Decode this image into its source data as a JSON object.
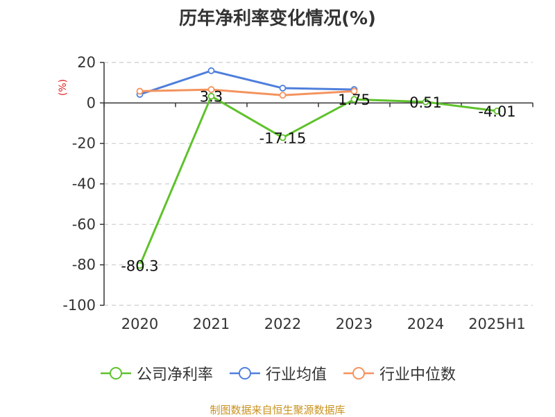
{
  "chart_data": {
    "type": "line",
    "title": "历年净利率变化情况(%)",
    "ylabel": "(%)",
    "categories": [
      "2020",
      "2021",
      "2022",
      "2023",
      "2024",
      "2025H1"
    ],
    "ylim": [
      -100,
      20
    ],
    "yticks": [
      20,
      0,
      -20,
      -40,
      -60,
      -80,
      -100
    ],
    "grid": true,
    "legend_position": "bottom",
    "series": [
      {
        "name": "公司净利率",
        "color": "#5ec22b",
        "values": [
          -80.3,
          3.3,
          -17.15,
          1.75,
          0.51,
          -4.01
        ],
        "labels": [
          "-80.3",
          "3.3",
          "-17.15",
          "1.75",
          "0.51",
          "-4.01"
        ]
      },
      {
        "name": "行业均值",
        "color": "#4f7fdc",
        "values": [
          4.2,
          15.9,
          7.3,
          6.6,
          null,
          null
        ]
      },
      {
        "name": "行业中位数",
        "color": "#f4935e",
        "values": [
          5.8,
          6.6,
          3.8,
          5.8,
          null,
          null
        ]
      }
    ]
  },
  "source_text": "制图数据来自恒生聚源数据库"
}
